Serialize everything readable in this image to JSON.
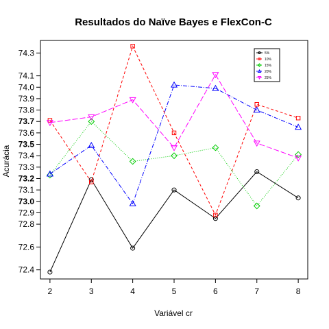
{
  "chart_data": {
    "type": "line",
    "title": "Resultados do Naïve Bayes e FlexCon-C",
    "xlabel": "Variável cr",
    "ylabel": "Acurácia",
    "x": [
      2,
      3,
      4,
      5,
      6,
      7,
      8
    ],
    "xlim": [
      2,
      8
    ],
    "ylim": [
      72.32,
      74.41
    ],
    "yticks": [
      {
        "value": 72.4,
        "label": "72.4",
        "bold": false
      },
      {
        "value": 72.6,
        "label": "72.6",
        "bold": false
      },
      {
        "value": 72.8,
        "label": "72.8",
        "bold": false
      },
      {
        "value": 72.9,
        "label": "72.9",
        "bold": false
      },
      {
        "value": 73.0,
        "label": "73.0",
        "bold": true
      },
      {
        "value": 73.1,
        "label": "73.1",
        "bold": false
      },
      {
        "value": 73.2,
        "label": "73.2",
        "bold": true
      },
      {
        "value": 73.3,
        "label": "73.3",
        "bold": false
      },
      {
        "value": 73.4,
        "label": "73.4",
        "bold": false
      },
      {
        "value": 73.5,
        "label": "73.5",
        "bold": true
      },
      {
        "value": 73.6,
        "label": "73.6",
        "bold": false
      },
      {
        "value": 73.7,
        "label": "73.7",
        "bold": true
      },
      {
        "value": 73.8,
        "label": "73.8",
        "bold": false
      },
      {
        "value": 73.9,
        "label": "73.9",
        "bold": false
      },
      {
        "value": 74.0,
        "label": "74.0",
        "bold": false
      },
      {
        "value": 74.1,
        "label": "74.1",
        "bold": false
      },
      {
        "value": 74.3,
        "label": "74.3",
        "bold": false
      }
    ],
    "xticks": [
      "2",
      "3",
      "4",
      "5",
      "6",
      "7",
      "8"
    ],
    "grid": false,
    "legend": "top-right",
    "series": [
      {
        "name": "5%",
        "color": "#000000",
        "dash": "",
        "marker": "circle",
        "values": [
          72.38,
          73.19,
          72.59,
          73.1,
          72.85,
          73.26,
          73.03
        ]
      },
      {
        "name": "10%",
        "color": "#ff0000",
        "dash": "4,3",
        "marker": "square",
        "values": [
          73.71,
          73.17,
          74.36,
          73.6,
          72.88,
          73.85,
          73.73
        ]
      },
      {
        "name": "15%",
        "color": "#00cc00",
        "dash": "1,2",
        "marker": "diamond",
        "values": [
          73.23,
          73.7,
          73.35,
          73.4,
          73.47,
          72.96,
          73.41
        ]
      },
      {
        "name": "20%",
        "color": "#0000ff",
        "dash": "6,2,1,2",
        "marker": "triangle-up",
        "values": [
          73.24,
          73.49,
          72.98,
          74.02,
          73.99,
          73.8,
          73.65
        ]
      },
      {
        "name": "25%",
        "color": "#ff00ff",
        "dash": "8,3",
        "marker": "triangle-down",
        "values": [
          73.69,
          73.74,
          73.89,
          73.47,
          74.11,
          73.51,
          73.38
        ]
      }
    ]
  }
}
